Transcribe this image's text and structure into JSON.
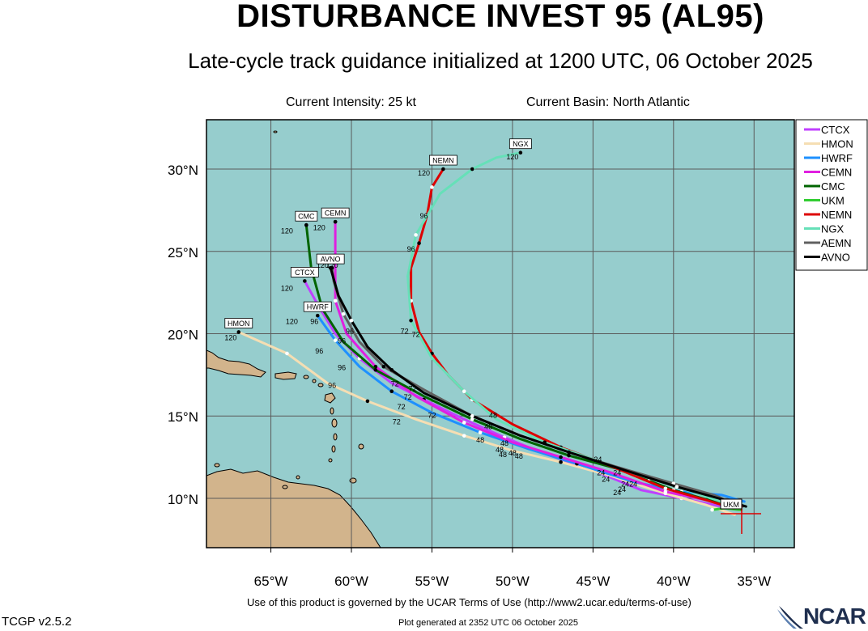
{
  "title": "DISTURBANCE INVEST 95 (AL95)",
  "subtitle": "Late-cycle track guidance initialized at 1200 UTC, 06 October 2025",
  "current_intensity": "Current Intensity: 25 kt",
  "current_basin": "Current Basin: North Atlantic",
  "footer_terms": "Use of this product is governed by the UCAR Terms of Use (http://www2.ucar.edu/terms-of-use)",
  "footer_generated": "Plot generated at 2352 UTC   06 October 2025",
  "version": "TCGP v2.5.2",
  "logo_text": "NCAR",
  "colors": {
    "ocean": "#96cdcd",
    "land": "#d2b48c",
    "grid": "#5a5a5a"
  },
  "axes": {
    "lon_range": [
      -69,
      -32.5
    ],
    "lat_range": [
      7,
      33
    ],
    "lon_ticks": [
      -65,
      -60,
      -55,
      -50,
      -45,
      -40,
      -35
    ],
    "lon_labels": [
      "65°W",
      "60°W",
      "55°W",
      "50°W",
      "45°W",
      "40°W",
      "35°W"
    ],
    "lat_ticks": [
      10,
      15,
      20,
      25,
      30
    ],
    "lat_labels": [
      "10°N",
      "15°N",
      "20°N",
      "25°N",
      "30°N"
    ]
  },
  "legend_position": "right",
  "storm_label": "UKM",
  "models": [
    {
      "name": "CTCX",
      "color": "#c040ff",
      "end_label": true,
      "track": [
        [
          -36.0,
          9.3
        ],
        [
          -37.5,
          9.6
        ],
        [
          -39.5,
          10.0
        ],
        [
          -42.0,
          10.5
        ],
        [
          -45.5,
          11.9
        ],
        [
          -48.0,
          12.7
        ],
        [
          -50.5,
          13.7
        ],
        [
          -53.0,
          14.8
        ],
        [
          -55.5,
          16.0
        ],
        [
          -57.5,
          17.0
        ],
        [
          -59.5,
          18.5
        ],
        [
          -61.0,
          20.0
        ],
        [
          -62.0,
          21.6
        ],
        [
          -62.9,
          23.2
        ]
      ]
    },
    {
      "name": "HMON",
      "color": "#f5deb3",
      "end_label": true,
      "track": [
        [
          -36.2,
          9.0
        ],
        [
          -38.0,
          9.6
        ],
        [
          -40.5,
          10.3
        ],
        [
          -44.0,
          11.4
        ],
        [
          -47.0,
          12.2
        ],
        [
          -50.0,
          12.9
        ],
        [
          -53.0,
          13.8
        ],
        [
          -56.0,
          14.8
        ],
        [
          -59.0,
          15.9
        ],
        [
          -61.5,
          17.0
        ],
        [
          -64.0,
          18.8
        ],
        [
          -67.0,
          20.1
        ]
      ]
    },
    {
      "name": "HWRF",
      "color": "#1e90ff",
      "end_label": true,
      "track": [
        [
          -35.6,
          9.8
        ],
        [
          -37.0,
          10.2
        ],
        [
          -39.5,
          10.4
        ],
        [
          -42.5,
          11.0
        ],
        [
          -46.0,
          12.1
        ],
        [
          -49.0,
          13.0
        ],
        [
          -52.0,
          14.0
        ],
        [
          -55.0,
          15.2
        ],
        [
          -57.5,
          16.5
        ],
        [
          -59.5,
          18.0
        ],
        [
          -61.0,
          19.6
        ],
        [
          -62.1,
          21.1
        ]
      ]
    },
    {
      "name": "CEMN",
      "color": "#e020e0",
      "end_label": true,
      "track": [
        [
          -36.0,
          9.5
        ],
        [
          -38.0,
          9.9
        ],
        [
          -40.5,
          10.4
        ],
        [
          -44.0,
          11.6
        ],
        [
          -47.0,
          12.5
        ],
        [
          -50.0,
          13.4
        ],
        [
          -53.0,
          14.6
        ],
        [
          -56.0,
          16.2
        ],
        [
          -58.5,
          18.0
        ],
        [
          -60.3,
          20.0
        ],
        [
          -61.0,
          22.0
        ],
        [
          -61.0,
          24.5
        ],
        [
          -61.0,
          26.8
        ]
      ]
    },
    {
      "name": "CMC",
      "color": "#006400",
      "end_label": true,
      "track": [
        [
          -35.8,
          9.3
        ],
        [
          -37.5,
          9.8
        ],
        [
          -40.0,
          10.5
        ],
        [
          -43.5,
          11.8
        ],
        [
          -46.5,
          12.6
        ],
        [
          -49.5,
          13.6
        ],
        [
          -52.5,
          14.8
        ],
        [
          -55.5,
          16.2
        ],
        [
          -58.5,
          17.8
        ],
        [
          -60.5,
          19.5
        ],
        [
          -61.8,
          21.5
        ],
        [
          -62.5,
          24.0
        ],
        [
          -62.8,
          26.6
        ]
      ]
    },
    {
      "name": "UKM",
      "color": "#32cd32",
      "end_label": false,
      "track": [
        [
          -35.9,
          9.3
        ],
        [
          -36.8,
          9.4
        ],
        [
          -37.6,
          9.3
        ]
      ]
    },
    {
      "name": "NEMN",
      "color": "#dd0000",
      "end_label": true,
      "track": [
        [
          -36.3,
          9.4
        ],
        [
          -38.0,
          9.9
        ],
        [
          -40.5,
          10.6
        ],
        [
          -44.0,
          12.0
        ],
        [
          -47.0,
          13.1
        ],
        [
          -50.0,
          14.5
        ],
        [
          -52.5,
          16.0
        ],
        [
          -54.0,
          17.5
        ],
        [
          -55.0,
          18.8
        ],
        [
          -55.8,
          20.1
        ],
        [
          -56.3,
          22.0
        ],
        [
          -56.3,
          24.0
        ],
        [
          -55.8,
          25.5
        ],
        [
          -55.3,
          27.2
        ],
        [
          -55.0,
          28.9
        ],
        [
          -54.3,
          30.0
        ]
      ]
    },
    {
      "name": "NGX",
      "color": "#66e0b8",
      "end_label": true,
      "track": [
        [
          -36.5,
          9.6
        ],
        [
          -38.5,
          10.3
        ],
        [
          -41.5,
          11.2
        ],
        [
          -44.5,
          12.2
        ],
        [
          -48.0,
          13.4
        ],
        [
          -51.0,
          14.8
        ],
        [
          -53.0,
          16.5
        ],
        [
          -55.0,
          18.5
        ],
        [
          -56.3,
          20.8
        ],
        [
          -56.5,
          23.5
        ],
        [
          -56.0,
          26.0
        ],
        [
          -54.5,
          28.5
        ],
        [
          -52.5,
          30.0
        ],
        [
          -51.0,
          30.7
        ],
        [
          -49.5,
          31.0
        ]
      ]
    },
    {
      "name": "AEMN",
      "color": "#606060",
      "end_label": false,
      "track": [
        [
          -35.7,
          9.5
        ],
        [
          -37.5,
          10.2
        ],
        [
          -40.0,
          10.9
        ],
        [
          -43.5,
          11.9
        ],
        [
          -46.5,
          12.8
        ],
        [
          -49.5,
          13.8
        ],
        [
          -52.5,
          15.0
        ],
        [
          -55.5,
          16.6
        ],
        [
          -58.0,
          18.0
        ],
        [
          -59.5,
          19.5
        ],
        [
          -60.5,
          21.2
        ],
        [
          -61.1,
          23.2
        ],
        [
          -61.2,
          24.0
        ]
      ]
    },
    {
      "name": "AVNO",
      "color": "#000000",
      "end_label": true,
      "track": [
        [
          -35.5,
          9.5
        ],
        [
          -37.2,
          10.0
        ],
        [
          -39.8,
          10.7
        ],
        [
          -43.0,
          11.7
        ],
        [
          -46.5,
          12.8
        ],
        [
          -49.5,
          13.8
        ],
        [
          -52.5,
          15.0
        ],
        [
          -55.5,
          16.4
        ],
        [
          -57.5,
          17.8
        ],
        [
          -59.0,
          19.2
        ],
        [
          -60.0,
          20.8
        ],
        [
          -60.8,
          22.3
        ],
        [
          -61.3,
          24.0
        ]
      ]
    }
  ],
  "hour_labels": [
    {
      "text": "24",
      "lon": -44.7,
      "lat": 12.2
    },
    {
      "text": "24",
      "lon": -44.5,
      "lat": 11.4
    },
    {
      "text": "24",
      "lon": -44.2,
      "lat": 11.0
    },
    {
      "text": "24",
      "lon": -43.5,
      "lat": 11.4
    },
    {
      "text": "24",
      "lon": -43.0,
      "lat": 10.7
    },
    {
      "text": "24",
      "lon": -42.5,
      "lat": 10.7
    },
    {
      "text": "24",
      "lon": -43.2,
      "lat": 10.4
    },
    {
      "text": "24",
      "lon": -43.5,
      "lat": 10.2
    },
    {
      "text": "48",
      "lon": -51.2,
      "lat": 14.9
    },
    {
      "text": "48",
      "lon": -51.5,
      "lat": 14.2
    },
    {
      "text": "48",
      "lon": -52.0,
      "lat": 13.4
    },
    {
      "text": "48",
      "lon": -50.5,
      "lat": 13.2
    },
    {
      "text": "48",
      "lon": -50.0,
      "lat": 12.6
    },
    {
      "text": "48",
      "lon": -50.8,
      "lat": 12.8
    },
    {
      "text": "48",
      "lon": -49.6,
      "lat": 12.4
    },
    {
      "text": "48",
      "lon": -50.6,
      "lat": 12.5
    },
    {
      "text": "72",
      "lon": -56.7,
      "lat": 20.0
    },
    {
      "text": "72",
      "lon": -56.0,
      "lat": 19.8
    },
    {
      "text": "72",
      "lon": -57.3,
      "lat": 16.8
    },
    {
      "text": "72",
      "lon": -56.2,
      "lat": 16.5
    },
    {
      "text": "72",
      "lon": -56.5,
      "lat": 16.0
    },
    {
      "text": "72",
      "lon": -56.9,
      "lat": 15.4
    },
    {
      "text": "72",
      "lon": -55.0,
      "lat": 14.9
    },
    {
      "text": "72",
      "lon": -57.2,
      "lat": 14.5
    },
    {
      "text": "96",
      "lon": -55.5,
      "lat": 27.0
    },
    {
      "text": "96",
      "lon": -56.3,
      "lat": 25.0
    },
    {
      "text": "96",
      "lon": -61.8,
      "lat": 21.6
    },
    {
      "text": "96",
      "lon": -62.3,
      "lat": 20.6
    },
    {
      "text": "96",
      "lon": -60.1,
      "lat": 20.0
    },
    {
      "text": "96",
      "lon": -60.6,
      "lat": 19.4
    },
    {
      "text": "96",
      "lon": -62.0,
      "lat": 18.8
    },
    {
      "text": "96",
      "lon": -60.6,
      "lat": 17.8
    },
    {
      "text": "96",
      "lon": -61.2,
      "lat": 16.7
    },
    {
      "text": "120",
      "lon": -64.0,
      "lat": 26.1
    },
    {
      "text": "120",
      "lon": -62.0,
      "lat": 26.3
    },
    {
      "text": "120",
      "lon": -61.8,
      "lat": 24.0
    },
    {
      "text": "120",
      "lon": -61.2,
      "lat": 24.0
    },
    {
      "text": "120",
      "lon": -64.0,
      "lat": 22.6
    },
    {
      "text": "120",
      "lon": -63.7,
      "lat": 20.6
    },
    {
      "text": "120",
      "lon": -67.5,
      "lat": 19.6
    },
    {
      "text": "120",
      "lon": -55.5,
      "lat": 29.6
    },
    {
      "text": "120",
      "lon": -50.0,
      "lat": 30.6
    }
  ]
}
